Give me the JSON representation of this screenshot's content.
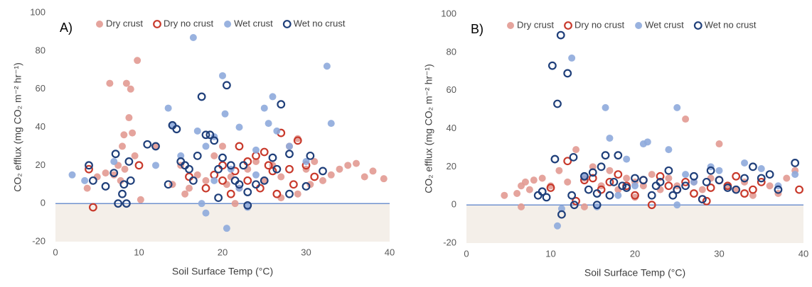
{
  "chart_data": [
    {
      "type": "scatter",
      "annotation": "A)",
      "xlabel": "Soil Surface Temp (°C)",
      "ylabel": "CO₂ efflux (mg CO₂ m⁻² hr⁻¹)",
      "xlim": [
        0,
        40
      ],
      "ylim": [
        -20,
        100
      ],
      "xticks": [
        0,
        10,
        20,
        30,
        40
      ],
      "yticks": [
        -20,
        0,
        20,
        40,
        60,
        80,
        100
      ],
      "zero_line_color": "#4472c4",
      "negative_fill": "#f4efe9",
      "series": [
        {
          "name": "Dry crust",
          "color": "#e29a92",
          "marker": "filled",
          "x": [
            3.8,
            5,
            6,
            6.5,
            7,
            7.5,
            8,
            8.2,
            8.5,
            8.8,
            9,
            9.2,
            9.5,
            9.8,
            8.3,
            7.8,
            10.2,
            12,
            14,
            15,
            16,
            17,
            18,
            19,
            20,
            20.5,
            21,
            22,
            23,
            24,
            25,
            26,
            27,
            28,
            29,
            30,
            30.5,
            31,
            32,
            33,
            34,
            35,
            36,
            37,
            38,
            39.3,
            21.5,
            27,
            15.5,
            29
          ],
          "values": [
            8,
            14,
            16,
            63,
            15,
            20,
            30,
            36,
            63,
            45,
            60,
            37,
            25,
            75,
            18,
            12,
            2,
            30,
            10,
            20,
            8,
            15,
            12,
            25,
            30,
            10,
            14,
            8,
            18,
            22,
            12,
            20,
            14,
            30,
            34,
            18,
            10,
            22,
            12,
            15,
            18,
            20,
            21,
            14,
            17,
            13,
            0,
            3,
            5,
            5
          ]
        },
        {
          "name": "Dry no crust",
          "color": "#c8392b",
          "marker": "hollow",
          "x": [
            4.5,
            4,
            10,
            18,
            19,
            20,
            21,
            22,
            23,
            24,
            25,
            25.5,
            26,
            27,
            28,
            29,
            30,
            31,
            28.5,
            23,
            20,
            21.5,
            16,
            24.5,
            26.5
          ],
          "values": [
            -2,
            18,
            20,
            8,
            15,
            20,
            5,
            30,
            12,
            25,
            27,
            20,
            17,
            37,
            18,
            33,
            20,
            14,
            10,
            22,
            12,
            17,
            14,
            8,
            5
          ]
        },
        {
          "name": "Wet crust",
          "color": "#8eaadb",
          "marker": "filled",
          "x": [
            2,
            3.5,
            7,
            13.5,
            14,
            16.5,
            17,
            18,
            19,
            20,
            20.3,
            21,
            22,
            24,
            25,
            25.5,
            26,
            26.5,
            28,
            30,
            32.5,
            33,
            17.5,
            18,
            20.5,
            23,
            22,
            24,
            12,
            15,
            19
          ],
          "values": [
            15,
            12,
            22,
            50,
            41,
            87,
            38,
            30,
            35,
            67,
            47,
            18,
            40,
            28,
            50,
            42,
            56,
            38,
            30,
            22,
            72,
            42,
            0,
            -5,
            -13,
            -2,
            8,
            15,
            20,
            25,
            12
          ]
        },
        {
          "name": "Wet no crust",
          "color": "#1f3f7a",
          "marker": "hollow",
          "x": [
            4,
            4.5,
            6,
            7,
            7.2,
            7.5,
            8,
            8.2,
            8.5,
            8.8,
            9,
            11,
            12,
            13.5,
            14,
            14.5,
            15,
            15.5,
            16.5,
            17,
            17.5,
            18,
            18.5,
            19,
            19.5,
            20,
            20.5,
            21,
            21.5,
            22,
            22.5,
            23,
            24,
            25,
            26,
            26.5,
            27,
            28,
            28,
            30,
            30.5,
            32,
            16,
            19.5,
            23
          ],
          "values": [
            20,
            12,
            9,
            16,
            26,
            0,
            5,
            10,
            0,
            22,
            12,
            31,
            30,
            10,
            41,
            39,
            22,
            20,
            12,
            25,
            56,
            36,
            36,
            33,
            18,
            24,
            62,
            20,
            12,
            10,
            20,
            6,
            10,
            12,
            24,
            18,
            52,
            26,
            5,
            9,
            25,
            17,
            18,
            3,
            -1
          ]
        }
      ]
    },
    {
      "type": "scatter",
      "annotation": "B)",
      "xlabel": "Soil Surface Temp (°C)",
      "ylabel": "CO₂ efflux (mg CO₂ m⁻² hr⁻¹)",
      "xlim": [
        0,
        40
      ],
      "ylim": [
        -20,
        100
      ],
      "xticks": [
        0,
        10,
        20,
        30,
        40
      ],
      "yticks": [
        -20,
        0,
        20,
        40,
        60,
        80,
        100
      ],
      "zero_line_color": "#4472c4",
      "negative_fill": "#f4efe9",
      "series": [
        {
          "name": "Dry crust",
          "color": "#e29a92",
          "marker": "filled",
          "x": [
            4.5,
            6,
            6.5,
            7,
            7.5,
            8,
            9,
            10,
            11,
            12,
            13,
            14,
            15,
            16,
            17,
            18,
            19,
            20,
            21,
            22,
            23,
            24,
            25,
            26,
            27,
            28,
            29,
            30,
            31,
            32,
            33,
            34,
            36,
            37,
            38,
            39,
            6.5,
            14,
            20
          ],
          "values": [
            5,
            6,
            10,
            12,
            8,
            13,
            14,
            10,
            18,
            12,
            29,
            14,
            20,
            10,
            18,
            8,
            14,
            12,
            10,
            16,
            8,
            14,
            10,
            45,
            12,
            8,
            14,
            32,
            10,
            8,
            12,
            5,
            10,
            6,
            14,
            18,
            -1,
            -1,
            4
          ]
        },
        {
          "name": "Dry no crust",
          "color": "#c8392b",
          "marker": "hollow",
          "x": [
            10,
            12,
            13,
            14,
            15,
            16,
            17,
            18,
            19,
            20,
            21,
            22,
            23,
            24,
            25,
            26,
            27,
            28,
            29,
            30,
            31,
            32,
            33,
            34,
            35,
            39.5,
            28.5
          ],
          "values": [
            9,
            23,
            2,
            13,
            14,
            8,
            12,
            16,
            10,
            5,
            13,
            0,
            15,
            10,
            8,
            12,
            6,
            3,
            9,
            13,
            10,
            15,
            6,
            8,
            12,
            8,
            2
          ]
        },
        {
          "name": "Wet crust",
          "color": "#8eaadb",
          "marker": "filled",
          "x": [
            10.8,
            11.3,
            12.5,
            16.5,
            17,
            19,
            21,
            21.5,
            24,
            25,
            26,
            29,
            30,
            33,
            35,
            37,
            39,
            15.5,
            25,
            20,
            14,
            18,
            27
          ],
          "values": [
            -11,
            -2,
            77,
            51,
            35,
            24,
            32,
            33,
            29,
            51,
            16,
            20,
            18,
            22,
            19,
            10,
            16,
            -1,
            0,
            10,
            15,
            5,
            12
          ]
        },
        {
          "name": "Wet no crust",
          "color": "#1f3f7a",
          "marker": "hollow",
          "x": [
            8.5,
            9,
            9.5,
            10.2,
            10.5,
            10.8,
            11.2,
            11.3,
            12,
            12.5,
            12.7,
            12.8,
            14,
            14.5,
            15,
            15.5,
            16,
            16.5,
            17,
            17.5,
            18,
            18.5,
            19,
            20,
            21,
            22,
            22.5,
            23,
            24,
            24.5,
            25,
            26,
            27,
            28,
            28.5,
            29,
            30,
            31,
            32,
            33,
            34,
            35,
            36,
            37,
            39,
            15.5
          ],
          "values": [
            5,
            7,
            4,
            73,
            24,
            53,
            89,
            -5,
            69,
            5,
            25,
            0,
            15,
            8,
            17,
            6,
            20,
            26,
            5,
            12,
            26,
            10,
            9,
            14,
            13,
            5,
            10,
            12,
            18,
            5,
            8,
            10,
            15,
            3,
            12,
            18,
            13,
            9,
            8,
            14,
            20,
            14,
            16,
            8,
            22,
            0
          ]
        }
      ]
    }
  ]
}
